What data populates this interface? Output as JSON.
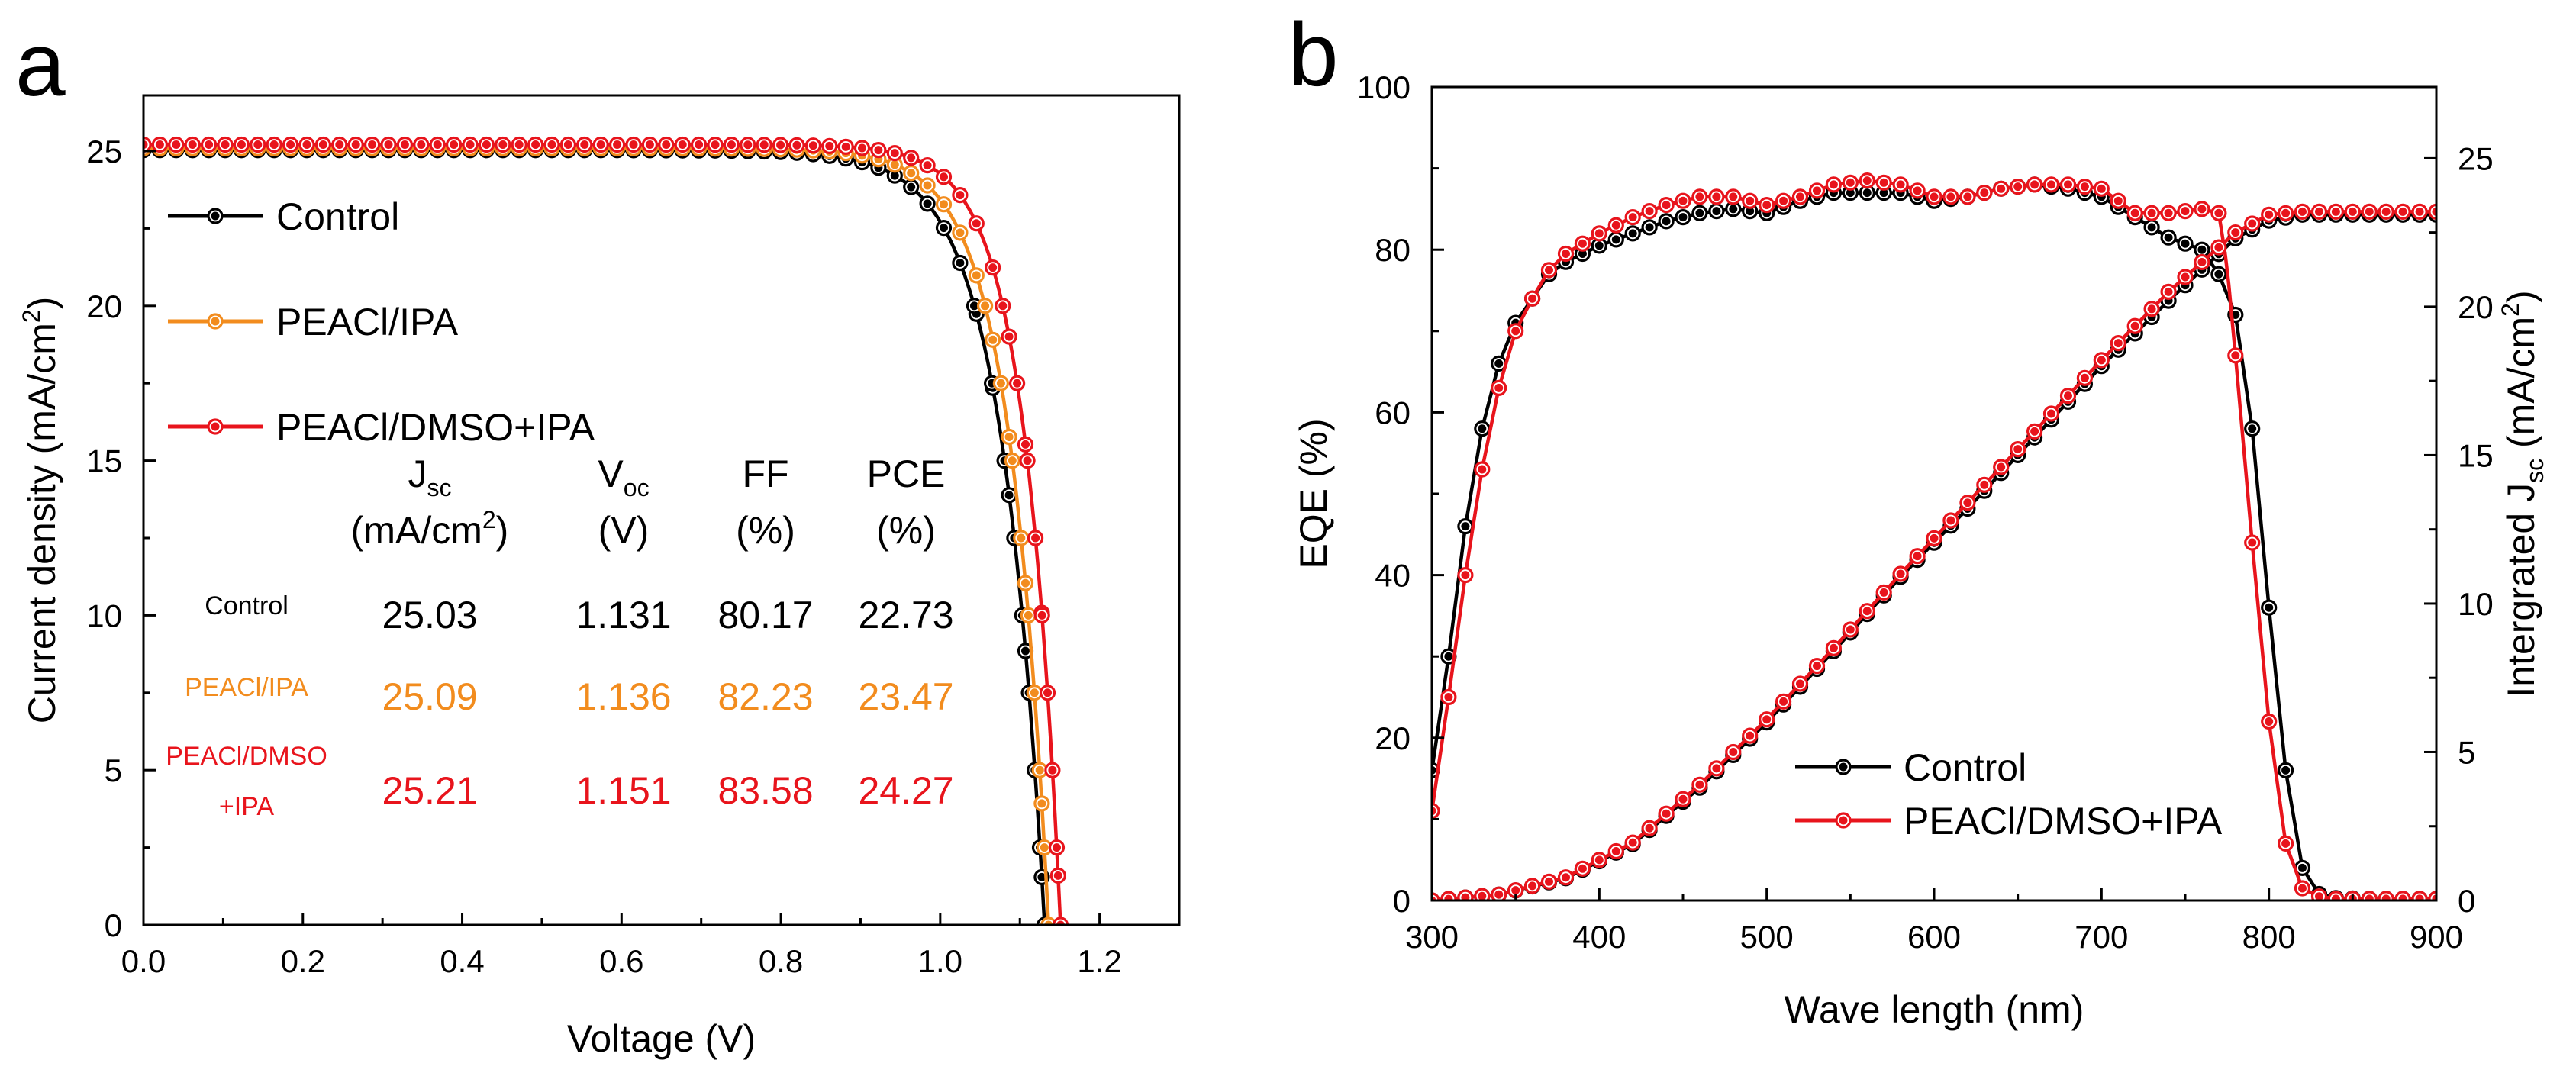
{
  "colors": {
    "control": "#000000",
    "ipa": "#f28c1e",
    "dmso": "#e8141c",
    "axis": "#000000",
    "bg": "#ffffff"
  },
  "chart_data": [
    {
      "panel": "a",
      "type": "line",
      "title": "",
      "xlabel": "Voltage (V)",
      "ylabel": "Current density (mA/cm²)",
      "ylabel_main": "Current density (mA/cm",
      "ylabel_sup": "2",
      "ylabel_end": ")",
      "xlim": [
        0,
        1.3
      ],
      "ylim": [
        0,
        26.8
      ],
      "xticks": [
        0,
        0.2,
        0.4,
        0.6,
        0.8,
        1.0,
        1.2
      ],
      "xtick_labels": [
        "0.0",
        "0.2",
        "0.4",
        "0.6",
        "0.8",
        "1.0",
        "1.2"
      ],
      "yticks": [
        0,
        5,
        10,
        15,
        20,
        25
      ],
      "ytick_labels": [
        "0",
        "5",
        "10",
        "15",
        "20",
        "25"
      ],
      "legend_position": "top-left",
      "series": [
        {
          "name": "Control",
          "color": "#000000",
          "jsc": 25.03,
          "voc": 1.131,
          "v_knee": 0.8,
          "n_vt": 0.055
        },
        {
          "name": "PEACl/IPA",
          "color": "#f28c1e",
          "jsc": 25.09,
          "voc": 1.136,
          "v_knee": 0.8,
          "n_vt": 0.05
        },
        {
          "name": "PEACl/DMSO+IPA",
          "color": "#e8141c",
          "jsc": 25.21,
          "voc": 1.151,
          "v_knee": 0.8,
          "n_vt": 0.046
        }
      ],
      "table": {
        "headers": [
          {
            "main": "J",
            "sub": "sc",
            "unit": "(mA/cm",
            "unit_sup": "2",
            "unit_end": ")"
          },
          {
            "main": "V",
            "sub": "oc",
            "unit": "(V)"
          },
          {
            "main": "FF",
            "sub": "",
            "unit": "(%)"
          },
          {
            "main": "PCE",
            "sub": "",
            "unit": "(%)"
          }
        ],
        "rows": [
          {
            "label": "Control",
            "label2": "",
            "color": "#000000",
            "values": [
              "25.03",
              "1.131",
              "80.17",
              "22.73"
            ]
          },
          {
            "label": "PEACl/IPA",
            "label2": "",
            "color": "#f28c1e",
            "values": [
              "25.09",
              "1.136",
              "82.23",
              "23.47"
            ]
          },
          {
            "label": "PEACl/DMSO",
            "label2": "+IPA",
            "color": "#e8141c",
            "values": [
              "25.21",
              "1.151",
              "83.58",
              "24.27"
            ]
          }
        ]
      }
    },
    {
      "panel": "b",
      "type": "line",
      "title": "",
      "xlabel": "Wave length (nm)",
      "ylabel": "EQE (%)",
      "y2label": "Intergrated Jsc (mA/cm²)",
      "y2label_main": "Intergrated J",
      "y2label_sub": "sc",
      "y2label_unit": " (mA/cm",
      "y2label_sup": "2",
      "y2label_end": ")",
      "xlim": [
        300,
        900
      ],
      "ylim": [
        0,
        100
      ],
      "y2lim": [
        0,
        27.4
      ],
      "xticks": [
        300,
        400,
        500,
        600,
        700,
        800,
        900
      ],
      "xtick_labels": [
        "300",
        "400",
        "500",
        "600",
        "700",
        "800",
        "900"
      ],
      "yticks": [
        0,
        20,
        40,
        60,
        80,
        100
      ],
      "ytick_labels": [
        "0",
        "20",
        "40",
        "60",
        "80",
        "100"
      ],
      "y2ticks": [
        0,
        5,
        10,
        15,
        20,
        25
      ],
      "y2tick_labels": [
        "0",
        "5",
        "10",
        "15",
        "20",
        "25"
      ],
      "legend_position": "bottom-center",
      "series": [
        {
          "name": "Control",
          "color": "#000000",
          "eqe": {
            "x": [
              300,
              310,
              320,
              330,
              340,
              350,
              360,
              370,
              380,
              400,
              420,
              440,
              460,
              480,
              500,
              520,
              540,
              560,
              580,
              600,
              620,
              640,
              660,
              680,
              700,
              720,
              740,
              760,
              770,
              780,
              790,
              800,
              810,
              820,
              830,
              840,
              860,
              880,
              900
            ],
            "y": [
              16,
              30,
              46,
              58,
              66,
              71,
              74,
              77,
              78.5,
              80.5,
              82,
              83.5,
              84.5,
              85,
              84.5,
              86,
              87,
              87,
              87,
              86,
              86.5,
              87.5,
              88,
              87.5,
              86.5,
              84,
              81.5,
              80,
              77,
              72,
              58,
              36,
              16,
              4,
              0.8,
              0.3,
              0.2,
              0.2,
              0.2
            ]
          },
          "jsc": {
            "x": [
              300,
              340,
              380,
              420,
              460,
              500,
              540,
              580,
              620,
              660,
              700,
              740,
              780,
              800,
              820,
              860,
              900
            ],
            "y": [
              0,
              0.2,
              0.75,
              1.9,
              3.8,
              6.0,
              8.4,
              10.9,
              13.2,
              15.6,
              18.0,
              20.2,
              22.3,
              22.9,
              23.1,
              23.1,
              23.1
            ]
          }
        },
        {
          "name": "PEACl/DMSO+IPA",
          "color": "#e8141c",
          "eqe": {
            "x": [
              300,
              310,
              320,
              330,
              340,
              350,
              360,
              370,
              380,
              400,
              420,
              440,
              460,
              480,
              500,
              520,
              540,
              560,
              580,
              600,
              620,
              640,
              660,
              680,
              700,
              720,
              740,
              760,
              770,
              775,
              780,
              790,
              800,
              810,
              820,
              830,
              840,
              860,
              880,
              900
            ],
            "y": [
              11,
              25,
              40,
              53,
              63,
              70,
              74,
              77.5,
              79.5,
              82,
              84,
              85.5,
              86.5,
              86.5,
              85.5,
              86.5,
              88,
              88.5,
              88,
              86.5,
              86.5,
              87.5,
              88,
              88,
              87.5,
              84.5,
              84.5,
              85,
              84.5,
              78,
              67,
              44,
              22,
              7,
              1.5,
              0.5,
              0.2,
              0.2,
              0.2,
              0.2
            ]
          },
          "jsc": {
            "x": [
              300,
              340,
              380,
              420,
              460,
              500,
              540,
              580,
              620,
              660,
              700,
              740,
              780,
              800,
              820,
              860,
              900
            ],
            "y": [
              0,
              0.2,
              0.78,
              1.95,
              3.9,
              6.1,
              8.5,
              11.0,
              13.4,
              15.8,
              18.2,
              20.5,
              22.5,
              23.1,
              23.2,
              23.2,
              23.2
            ]
          }
        }
      ]
    }
  ]
}
